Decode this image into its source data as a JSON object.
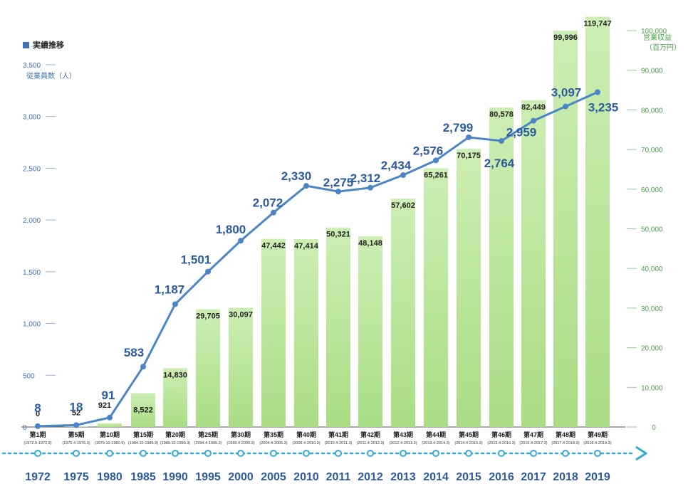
{
  "chart_data": {
    "type": "bar+line",
    "legend": "実績推移",
    "left_axis": {
      "title": "従業員数（人）",
      "ticks": [
        "3,500",
        "3,000",
        "2,500",
        "2,000",
        "1,500",
        "1,000",
        "500",
        "0"
      ],
      "ylim": [
        0,
        3500
      ]
    },
    "right_axis": {
      "title_line1": "営業収益",
      "title_line2": "（百万円）",
      "ticks": [
        "100,000",
        "90,000",
        "80,000",
        "70,000",
        "60,000",
        "50,000",
        "40,000",
        "30,000",
        "20,000",
        "10,000",
        "0"
      ],
      "ylim": [
        0,
        100000
      ]
    },
    "years": [
      "1972",
      "1975",
      "1980",
      "1985",
      "1990",
      "1995",
      "2000",
      "2005",
      "2010",
      "2011",
      "2012",
      "2013",
      "2014",
      "2015",
      "2016",
      "2017",
      "2018",
      "2019"
    ],
    "periods": [
      "第1期",
      "第5期",
      "第10期",
      "第15期",
      "第20期",
      "第25期",
      "第30期",
      "第35期",
      "第40期",
      "第41期",
      "第42期",
      "第43期",
      "第44期",
      "第45期",
      "第46期",
      "第47期",
      "第48期",
      "第49期"
    ],
    "period_ranges": [
      "(1972.5-1972.9)",
      "(1975.4-1976.3)",
      "(1979.10-1980.9)",
      "(1984.10-1985.9)",
      "(1989.10-1990.3)",
      "(1994.4-1995.3)",
      "(1999.4-2000.3)",
      "(2004.4-2005.3)",
      "(2009.4-2010.3)",
      "(2010.4-2011.3)",
      "(2011.4-2012.3)",
      "(2012.4-2013.3)",
      "(2013.4-2014.3)",
      "(2014.4-2015.3)",
      "(2015.4-2016.3)",
      "(2016.4-2017.3)",
      "(2017.4-2018.3)",
      "(2018.4-2019.3)"
    ],
    "revenue": {
      "name": "営業収益",
      "values": [
        0,
        52,
        921,
        8522,
        14830,
        29705,
        30097,
        47442,
        47414,
        50321,
        48148,
        57602,
        65261,
        70175,
        80578,
        82449,
        99996,
        119747
      ],
      "labels": [
        "0",
        "52",
        "921",
        "8,522",
        "14,830",
        "29,705",
        "30,097",
        "47,442",
        "47,414",
        "50,321",
        "48,148",
        "57,602",
        "65,261",
        "70,175",
        "80,578",
        "82,449",
        "99,996",
        "119,747"
      ]
    },
    "employees": {
      "name": "従業員数",
      "values": [
        8,
        18,
        91,
        583,
        1187,
        1501,
        1800,
        2072,
        2330,
        2275,
        2312,
        2434,
        2576,
        2799,
        2764,
        2959,
        3097,
        3235
      ],
      "labels": [
        "8",
        "18",
        "91",
        "583",
        "1,187",
        "1,501",
        "1,800",
        "2,072",
        "2,330",
        "2,275",
        "2,312",
        "2,434",
        "2,576",
        "2,799",
        "2,764",
        "2,959",
        "3,097",
        "3,235"
      ]
    },
    "colors": {
      "line": "#4a86c6",
      "bar_top": "#cdeeb4",
      "bar_bottom": "#a9dc84",
      "left_axis": "#3f6fb6",
      "right_axis": "#4aa24a",
      "timeline": "#35a9d6",
      "year_text": "#2c5aa0"
    }
  }
}
